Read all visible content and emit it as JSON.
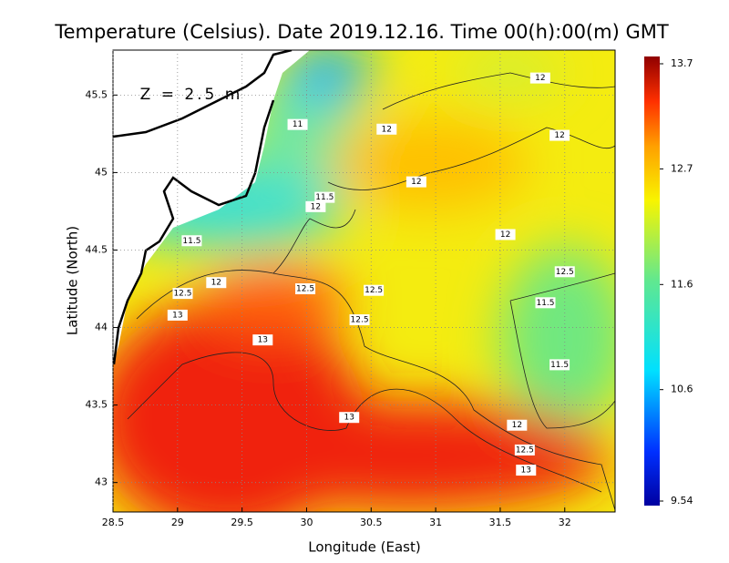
{
  "chart_data": {
    "type": "contour-map",
    "title": "Temperature (Celsius). Date 2019.12.16. Time 00(h):00(m) GMT",
    "annotation": "Z = 2.5 m",
    "x_label": "Longitude (East)",
    "y_label": "Latitude (North)",
    "xlim": [
      28.5,
      32.39
    ],
    "ylim": [
      42.81,
      45.79
    ],
    "xticks": [
      28.5,
      29,
      29.5,
      30,
      30.5,
      31,
      31.5,
      32
    ],
    "yticks": [
      43,
      43.5,
      44,
      44.5,
      45,
      45.5
    ],
    "grid": true,
    "clim": [
      9.54,
      13.7
    ],
    "cticks": [
      9.54,
      10.6,
      11.6,
      12.7,
      13.7
    ],
    "contour_labels": [
      {
        "value": 12,
        "x": 31.81,
        "y": 45.61
      },
      {
        "value": 11,
        "x": 29.93,
        "y": 45.31
      },
      {
        "value": 12,
        "x": 30.62,
        "y": 45.28
      },
      {
        "value": 12,
        "x": 31.96,
        "y": 45.24
      },
      {
        "value": 12,
        "x": 30.85,
        "y": 44.94
      },
      {
        "value": 11.5,
        "x": 30.14,
        "y": 44.84
      },
      {
        "value": 12,
        "x": 30.07,
        "y": 44.78
      },
      {
        "value": 11.5,
        "x": 29.11,
        "y": 44.56
      },
      {
        "value": 12,
        "x": 31.54,
        "y": 44.6
      },
      {
        "value": 12.5,
        "x": 32.0,
        "y": 44.36
      },
      {
        "value": 12,
        "x": 29.3,
        "y": 44.29
      },
      {
        "value": 12.5,
        "x": 29.04,
        "y": 44.22
      },
      {
        "value": 12.5,
        "x": 29.99,
        "y": 44.25
      },
      {
        "value": 12.5,
        "x": 30.52,
        "y": 44.24
      },
      {
        "value": 11.5,
        "x": 31.85,
        "y": 44.16
      },
      {
        "value": 13,
        "x": 29.0,
        "y": 44.08
      },
      {
        "value": 12.5,
        "x": 30.41,
        "y": 44.05
      },
      {
        "value": 13,
        "x": 29.66,
        "y": 43.92
      },
      {
        "value": 11.5,
        "x": 31.96,
        "y": 43.76
      },
      {
        "value": 13,
        "x": 30.33,
        "y": 43.42
      },
      {
        "value": 12,
        "x": 31.63,
        "y": 43.37
      },
      {
        "value": 12.5,
        "x": 31.69,
        "y": 43.21
      },
      {
        "value": 13,
        "x": 31.7,
        "y": 43.08
      }
    ]
  }
}
